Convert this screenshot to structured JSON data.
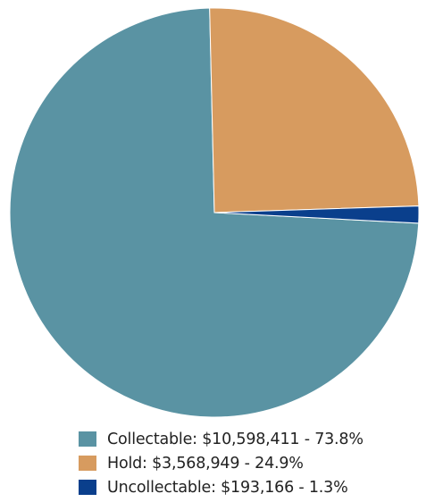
{
  "chart_data": {
    "type": "pie",
    "categories": [
      "Collectable",
      "Hold",
      "Uncollectable"
    ],
    "values": [
      10598411,
      3568949,
      193166
    ],
    "percentages": [
      73.8,
      24.9,
      1.3
    ],
    "colors": [
      "#5a93a3",
      "#d79b5f",
      "#0a3f8c"
    ],
    "legend": [
      {
        "label": "Collectable: $10,598,411 -  73.8%",
        "color": "#5a93a3"
      },
      {
        "label": "Hold: $3,568,949 - 24.9%",
        "color": "#d79b5f"
      },
      {
        "label": "Uncollectable:  $193,166 -  1.3%",
        "color": "#0a3f8c"
      }
    ],
    "legend_position": "bottom"
  }
}
